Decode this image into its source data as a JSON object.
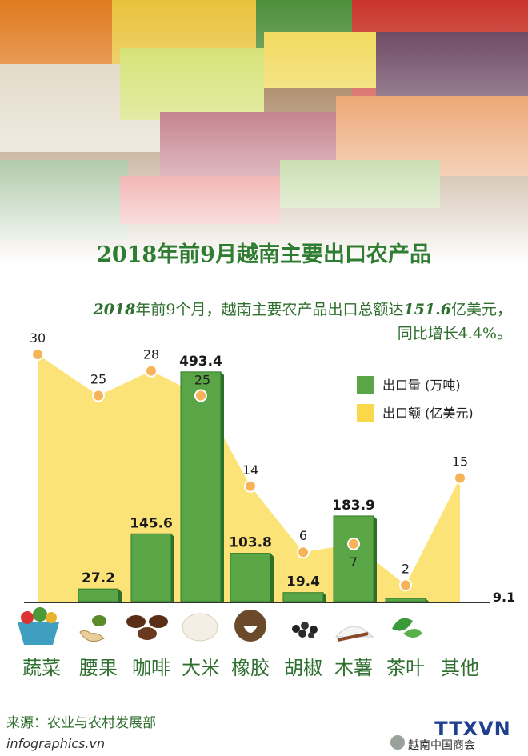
{
  "title": "2018年前9月越南主要出口农产品",
  "subtitle": {
    "prefix_year": "2018",
    "part1": "年前9个月，越南主要农产品出口总额达",
    "amount": "151.6",
    "part2": "亿美元，",
    "line2": "同比增长4.4%。"
  },
  "chart_data": {
    "type": "bar",
    "categories": [
      "蔬菜",
      "腰果",
      "咖啡",
      "大米",
      "橡胶",
      "胡椒",
      "木薯",
      "茶叶",
      "其他"
    ],
    "series": [
      {
        "name": "出口量 (万吨)",
        "type": "bar",
        "values": [
          null,
          27.2,
          145.6,
          493.4,
          103.8,
          19.4,
          183.9,
          1.0,
          null
        ],
        "labels": [
          "",
          "27.2",
          "145.6",
          "493.4",
          "103.8",
          "19.4",
          "183.9",
          "",
          "9.1"
        ],
        "color": "#5aa545"
      },
      {
        "name": "出口额 (亿美元)",
        "type": "area",
        "values": [
          30,
          25,
          28,
          25,
          14,
          6,
          7,
          2,
          15
        ],
        "color": "#f9d94a"
      }
    ],
    "extra_label": "9.1",
    "legend": "top-right"
  },
  "icons": [
    "vegetable-basket-icon",
    "cashew-icon",
    "coffee-beans-icon",
    "rice-icon",
    "rubber-icon",
    "pepper-icon",
    "cassava-icon",
    "tea-leaf-icon"
  ],
  "footer": {
    "source": "来源：农业与农村发展部",
    "site": "infographics.vn",
    "logo": "TTXVN",
    "wechat": "越南中国商会"
  }
}
